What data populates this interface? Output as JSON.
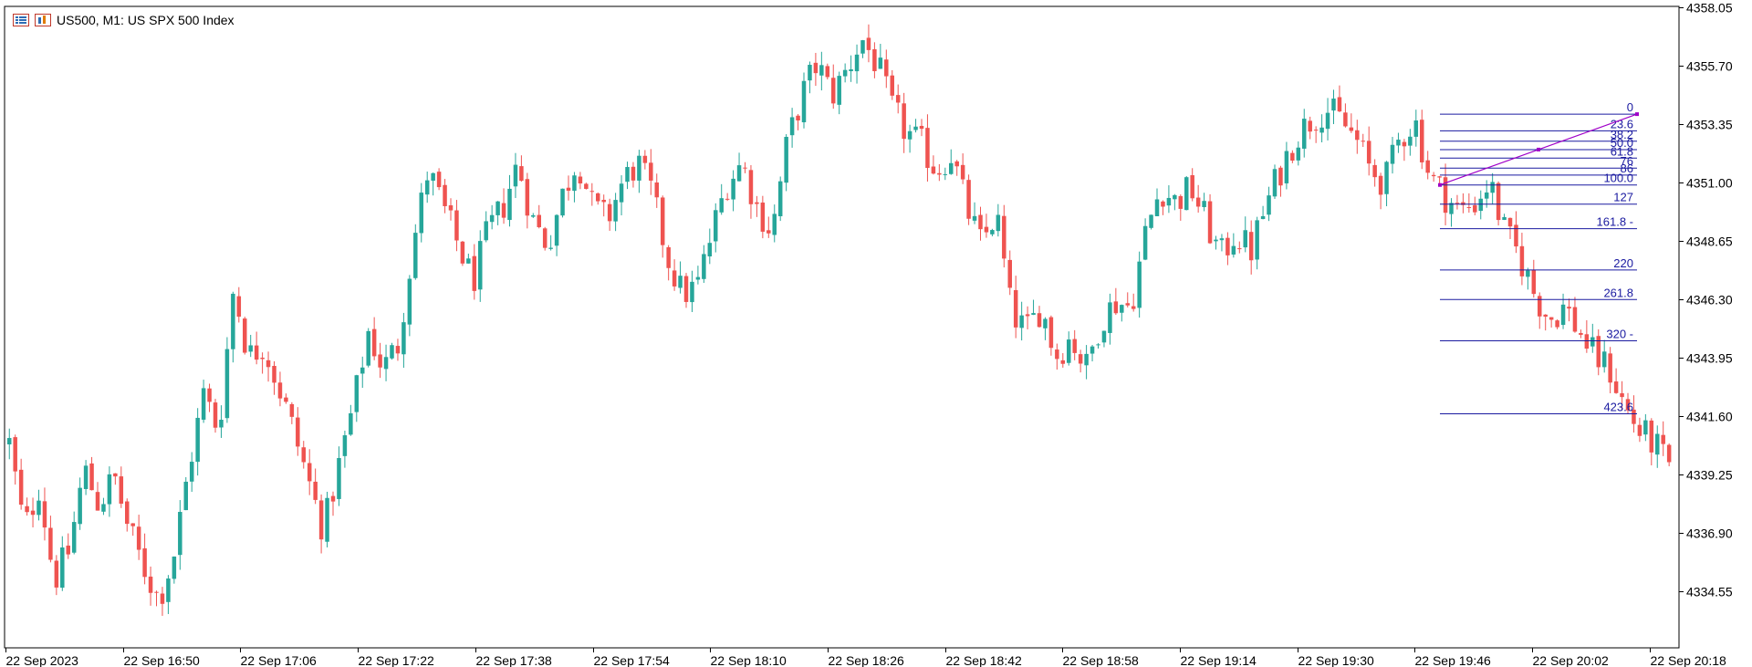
{
  "header": {
    "symbol": "US500",
    "timeframe": "M1",
    "description": "US SPX 500 Index",
    "title_text": "US500, M1:  US SPX 500 Index",
    "icons": [
      "bar-chart-icon",
      "chart-window-icon"
    ]
  },
  "colors": {
    "bull": "#26a69a",
    "bear": "#ef5350",
    "fibo": "#1a1aa0",
    "trend": "#a000c8",
    "axis": "#000000"
  },
  "chart_data": {
    "type": "candlestick",
    "ylim": [
      4332.6,
      4358.05
    ],
    "y_ticks": [
      "4358.05",
      "4355.70",
      "4353.35",
      "4351.00",
      "4348.65",
      "4346.30",
      "4343.95",
      "4341.60",
      "4339.25",
      "4336.90",
      "4334.55"
    ],
    "x_ticks": [
      "22 Sep 2023",
      "22 Sep 16:50",
      "22 Sep 17:06",
      "22 Sep 17:22",
      "22 Sep 17:38",
      "22 Sep 17:54",
      "22 Sep 18:10",
      "22 Sep 18:26",
      "22 Sep 18:42",
      "22 Sep 18:58",
      "22 Sep 19:14",
      "22 Sep 19:30",
      "22 Sep 19:46",
      "22 Sep 20:02",
      "22 Sep 20:18"
    ],
    "close_path": [
      4340.5,
      4337.0,
      4338.8,
      4335.0,
      4336.2,
      4339.5,
      4338.0,
      4339.2,
      4337.0,
      4335.5,
      4334.2,
      4336.0,
      4339.5,
      4342.5,
      4341.0,
      4346.8,
      4344.0,
      4344.5,
      4342.8,
      4341.0,
      4339.0,
      4337.0,
      4339.5,
      4342.0,
      4345.0,
      4343.5,
      4344.5,
      4348.5,
      4351.5,
      4350.0,
      4348.5,
      4347.0,
      4349.0,
      4350.0,
      4351.8,
      4349.5,
      4348.5,
      4350.5,
      4352.0,
      4350.0,
      4349.5,
      4351.0,
      4351.8,
      4350.5,
      4348.0,
      4346.5,
      4346.8,
      4349.0,
      4351.0,
      4351.8,
      4350.0,
      4349.0,
      4352.5,
      4354.5,
      4355.8,
      4354.5,
      4355.5,
      4356.8,
      4355.8,
      4354.0,
      4353.0,
      4352.5,
      4351.5,
      4352.2,
      4350.0,
      4348.5,
      4349.8,
      4345.8,
      4345.0,
      4346.0,
      4344.0,
      4344.8,
      4343.5,
      4345.5,
      4346.2,
      4346.0,
      4349.0,
      4350.8,
      4350.2,
      4350.8,
      4349.5,
      4348.0,
      4349.0,
      4348.2,
      4350.0,
      4351.5,
      4352.8,
      4353.5,
      4354.0,
      4353.5,
      4352.8,
      4351.5,
      4351.0,
      4352.8,
      4353.5,
      4351.2,
      4350.5,
      4349.8,
      4350.2,
      4351.0,
      4349.0,
      4348.0,
      4346.5,
      4345.5,
      4346.0,
      4345.0,
      4344.0,
      4343.5,
      4342.0,
      4341.0,
      4340.5,
      4339.5
    ],
    "fibonacci": {
      "levels": [
        "0",
        "23.6",
        "38.2",
        "50.0",
        "61.8",
        "76",
        "86",
        "100.0",
        "127",
        "161.8 -",
        "220",
        "261.8",
        "320 -",
        "423.6"
      ],
      "level_prices": [
        4353.75,
        4353.08,
        4352.66,
        4352.32,
        4351.98,
        4351.58,
        4351.3,
        4350.9,
        4350.13,
        4349.14,
        4347.48,
        4346.29,
        4344.63,
        4341.69
      ]
    },
    "trendline": {
      "start_price": 4350.9,
      "end_price": 4353.75
    }
  }
}
